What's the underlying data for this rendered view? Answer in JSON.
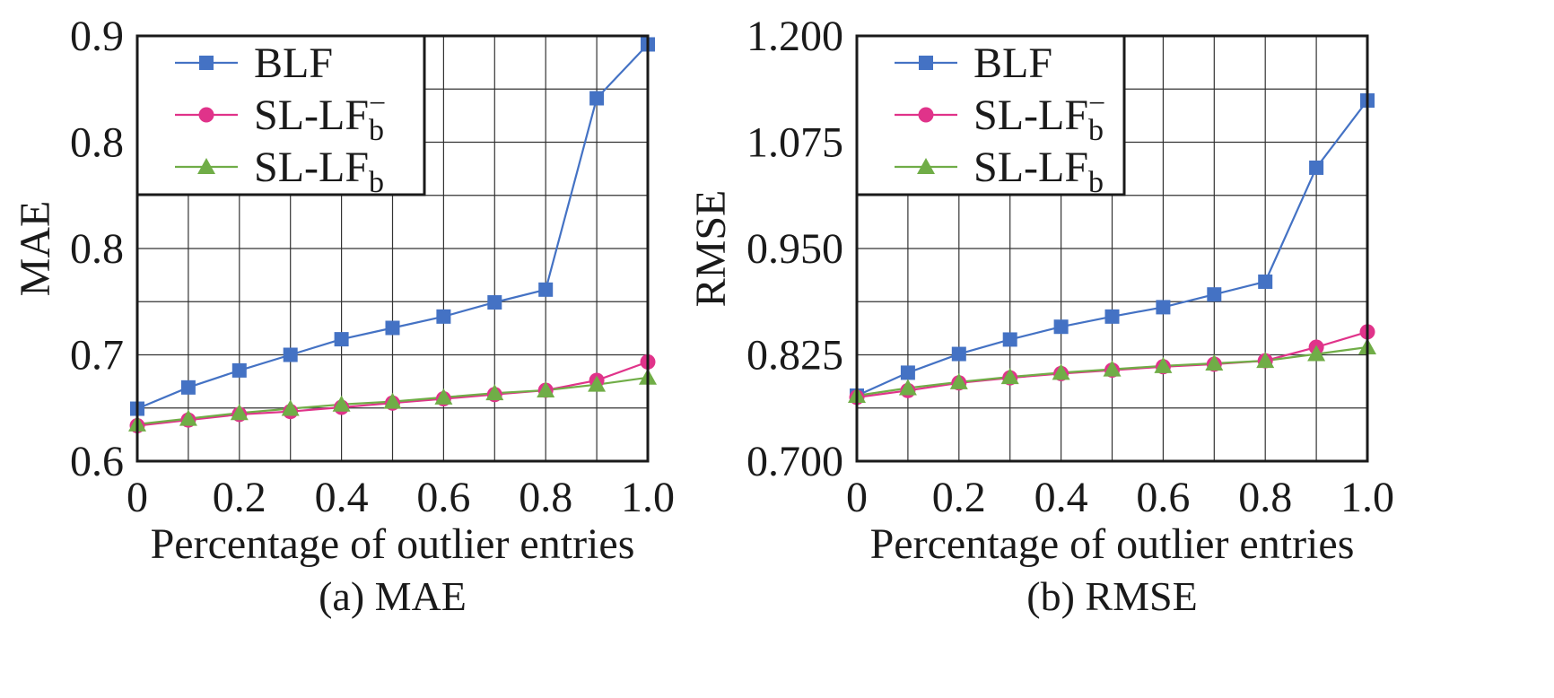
{
  "colors": {
    "BLF": "#4472c4",
    "SL-LF_b_minus": "#e0338a",
    "SL-LF_b": "#70ad47",
    "grid": "#333333",
    "frame": "#1a1a1a"
  },
  "chart_data": [
    {
      "type": "line",
      "caption": "(a) MAE",
      "xlabel": "Percentage of outlier entries",
      "ylabel": "MAE",
      "x": [
        0,
        0.1,
        0.2,
        0.3,
        0.4,
        0.5,
        0.6,
        0.7,
        0.8,
        0.9,
        1.0
      ],
      "xlim": [
        0,
        1.0
      ],
      "ylim": [
        0.6,
        0.9
      ],
      "x_tick_values": [
        0,
        0.2,
        0.4,
        0.6,
        0.8,
        1.0
      ],
      "x_tick_labels": [
        "0",
        "0.2",
        "0.4",
        "0.6",
        "0.8",
        "1.0"
      ],
      "y_tick_values": [
        0.6,
        0.675,
        0.75,
        0.825,
        0.9
      ],
      "y_tick_labels": [
        "0.6",
        "0.7",
        "0.8",
        "0.8",
        "0.9"
      ],
      "grid": true,
      "legend_position": "top-left",
      "series": [
        {
          "name": "BLF",
          "marker": "square",
          "color_key": "BLF",
          "values": [
            0.637,
            0.652,
            0.664,
            0.675,
            0.686,
            0.694,
            0.702,
            0.712,
            0.721,
            0.856,
            0.894
          ]
        },
        {
          "name": "SL-LF",
          "sub": "b",
          "sup": "−",
          "marker": "circle",
          "color_key": "SL-LF_b_minus",
          "values": [
            0.625,
            0.629,
            0.633,
            0.635,
            0.638,
            0.641,
            0.644,
            0.647,
            0.65,
            0.657,
            0.67
          ]
        },
        {
          "name": "SL-LF",
          "sub": "b",
          "sup": "",
          "marker": "triangle",
          "color_key": "SL-LF_b",
          "values": [
            0.626,
            0.63,
            0.634,
            0.637,
            0.64,
            0.642,
            0.645,
            0.648,
            0.65,
            0.654,
            0.659
          ]
        }
      ]
    },
    {
      "type": "line",
      "caption": "(b) RMSE",
      "xlabel": "Percentage of outlier entries",
      "ylabel": "RMSE",
      "x": [
        0,
        0.1,
        0.2,
        0.3,
        0.4,
        0.5,
        0.6,
        0.7,
        0.8,
        0.9,
        1.0
      ],
      "xlim": [
        0,
        1.0
      ],
      "ylim": [
        0.7,
        1.2
      ],
      "x_tick_values": [
        0,
        0.2,
        0.4,
        0.6,
        0.8,
        1.0
      ],
      "x_tick_labels": [
        "0",
        "0.2",
        "0.4",
        "0.6",
        "0.8",
        "1.0"
      ],
      "y_tick_values": [
        0.7,
        0.825,
        0.95,
        1.075,
        1.2
      ],
      "y_tick_labels": [
        "0.700",
        "0.825",
        "0.950",
        "1.075",
        "1.200"
      ],
      "grid": true,
      "legend_position": "top-left",
      "series": [
        {
          "name": "BLF",
          "marker": "square",
          "color_key": "BLF",
          "values": [
            0.777,
            0.804,
            0.826,
            0.843,
            0.858,
            0.87,
            0.881,
            0.896,
            0.911,
            1.045,
            1.124
          ]
        },
        {
          "name": "SL-LF",
          "sub": "b",
          "sup": "−",
          "marker": "circle",
          "color_key": "SL-LF_b_minus",
          "values": [
            0.775,
            0.783,
            0.792,
            0.798,
            0.803,
            0.807,
            0.811,
            0.814,
            0.818,
            0.834,
            0.852
          ]
        },
        {
          "name": "SL-LF",
          "sub": "b",
          "sup": "",
          "marker": "triangle",
          "color_key": "SL-LF_b",
          "values": [
            0.777,
            0.786,
            0.793,
            0.799,
            0.804,
            0.808,
            0.812,
            0.815,
            0.818,
            0.826,
            0.834
          ]
        }
      ]
    }
  ]
}
